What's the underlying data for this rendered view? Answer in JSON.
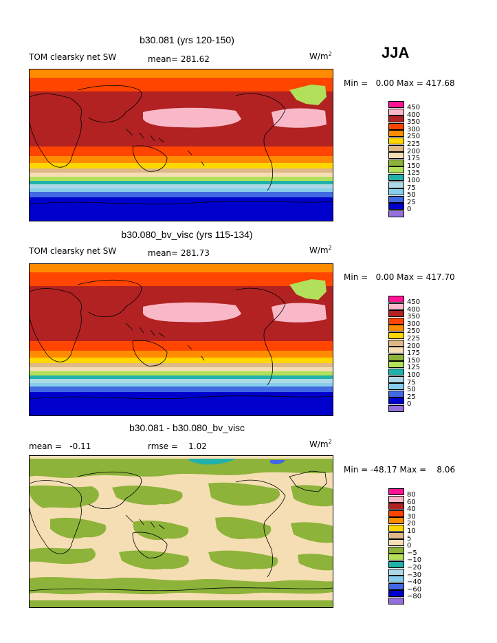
{
  "season": "JJA",
  "units_prefix": "W/m",
  "units_sup": "2",
  "panels": [
    {
      "title": "b30.081 (yrs 120-150)",
      "left_label": "TOM clearsky net SW",
      "stat_label": "mean= 281.62",
      "minmax": "Min =   0.00 Max = 417.68",
      "colorbar": {
        "colors": [
          "#ff1493",
          "#f9b8c7",
          "#b22222",
          "#ff4500",
          "#ff8c00",
          "#ffd700",
          "#deb887",
          "#f5deb3",
          "#8db33a",
          "#b3e05a",
          "#20b2aa",
          "#add8e6",
          "#87ceeb",
          "#4169e1",
          "#0000cd",
          "#9370db"
        ],
        "labels": [
          "450",
          "400",
          "350",
          "300",
          "250",
          "225",
          "200",
          "175",
          "150",
          "125",
          "100",
          "75",
          "50",
          "25",
          "0"
        ]
      }
    },
    {
      "title": "b30.080_bv_visc (yrs 115-134)",
      "left_label": "TOM clearsky net SW",
      "stat_label": "mean= 281.73",
      "minmax": "Min =   0.00 Max = 417.70",
      "colorbar": {
        "colors": [
          "#ff1493",
          "#f9b8c7",
          "#b22222",
          "#ff4500",
          "#ff8c00",
          "#ffd700",
          "#deb887",
          "#f5deb3",
          "#8db33a",
          "#b3e05a",
          "#20b2aa",
          "#add8e6",
          "#87ceeb",
          "#4169e1",
          "#0000cd",
          "#9370db"
        ],
        "labels": [
          "450",
          "400",
          "350",
          "300",
          "250",
          "225",
          "200",
          "175",
          "150",
          "125",
          "100",
          "75",
          "50",
          "25",
          "0"
        ]
      }
    },
    {
      "title": "b30.081 - b30.080_bv_visc",
      "left_label": "mean =   -0.11",
      "stat_label": "rmse =    1.02",
      "minmax": "Min = -48.17 Max =    8.06",
      "colorbar": {
        "colors": [
          "#ff1493",
          "#f9b8c7",
          "#b22222",
          "#ff4500",
          "#ff8c00",
          "#ffd700",
          "#deb887",
          "#f5deb3",
          "#8db33a",
          "#b3e05a",
          "#20b2aa",
          "#add8e6",
          "#87ceeb",
          "#4169e1",
          "#0000cd",
          "#9370db"
        ],
        "labels": [
          "80",
          "60",
          "40",
          "30",
          "20",
          "10",
          "5",
          "0",
          "−5",
          "−10",
          "−20",
          "−30",
          "−40",
          "−60",
          "−80"
        ]
      }
    }
  ]
}
